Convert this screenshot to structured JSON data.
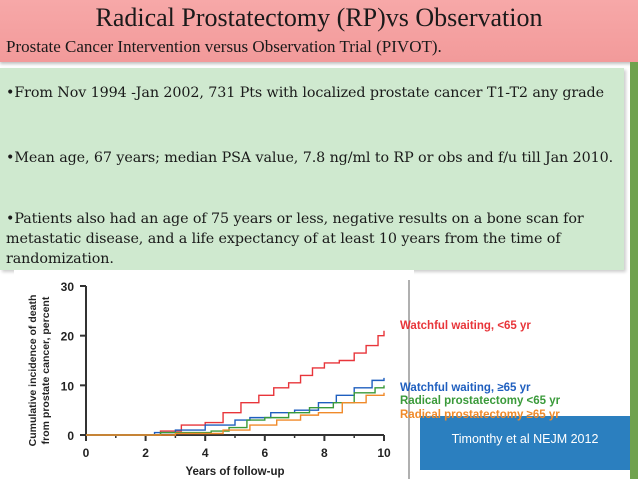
{
  "title": "Radical Prostatectomy (RP)vs Observation",
  "subtitle": "Prostate Cancer Intervention versus Observation Trial (PIVOT).",
  "bullets": [
    "•From Nov 1994 -Jan 2002,  731 Pts with localized prostate cancer T1-T2 any grade",
    "•Mean age, 67 years; median PSA value, 7.8 ng/ml to RP or obs and f/u till Jan 2010.",
    "•Patients also had an age of 75 years or less, negative results on a bone scan for metastatic disease, and a life expectancy of at least 10 years from the time of randomization."
  ],
  "citation": "Timonthy et al NEJM 2012",
  "colors": {
    "title_band": "#f29a9a",
    "text_box": "#cfe9cf",
    "accent_stripe": "#6fa24d",
    "citation_box": "#2b7fbf"
  },
  "chart_data": {
    "type": "line",
    "xlabel": "Years of follow-up",
    "ylabel": "Cumulative incidence of death from prostate cancer, percent",
    "xlim": [
      0,
      10
    ],
    "ylim": [
      0,
      30
    ],
    "xticks": [
      "0",
      "2",
      "4",
      "6",
      "8",
      "10"
    ],
    "yticks": [
      "0",
      "10",
      "20",
      "30"
    ],
    "series": [
      {
        "name": "Watchful waiting, <65 yr",
        "color": "#e8353a",
        "x": [
          0,
          2.5,
          3.2,
          4,
          4.6,
          5.2,
          5.8,
          6.3,
          6.8,
          7.2,
          7.6,
          8.0,
          8.5,
          9.0,
          9.4,
          9.8,
          10.2
        ],
        "y": [
          0,
          0.8,
          2.0,
          2.5,
          4.5,
          6.5,
          8.0,
          9.5,
          10.5,
          12.0,
          13.5,
          14.5,
          15.0,
          16.5,
          18.0,
          20.0,
          21.0
        ]
      },
      {
        "name": "Watchful waiting, ≥65 yr",
        "color": "#1f5fbf",
        "x": [
          0,
          2.3,
          3.0,
          4.0,
          5.0,
          5.5,
          6.2,
          7.0,
          7.8,
          8.4,
          9.0,
          9.6,
          10.2
        ],
        "y": [
          0,
          0.5,
          1.0,
          2.0,
          3.0,
          3.5,
          4.5,
          5.0,
          6.5,
          8.0,
          9.5,
          11.0,
          11.5
        ]
      },
      {
        "name": "Radical prostatectomy <65 yr",
        "color": "#3a9a3a",
        "x": [
          0,
          2.5,
          4.2,
          4.8,
          5.4,
          6.0,
          6.8,
          7.5,
          8.3,
          9.0,
          9.7,
          10.2
        ],
        "y": [
          0,
          0.5,
          0.8,
          1.5,
          3.0,
          3.5,
          4.5,
          5.5,
          6.5,
          8.5,
          9.5,
          10.0
        ]
      },
      {
        "name": "Radical prostatectomy ≥65 yr",
        "color": "#f08a2a",
        "x": [
          0,
          3.0,
          4.6,
          5.5,
          6.4,
          7.2,
          7.8,
          8.6,
          9.4,
          10.2
        ],
        "y": [
          0,
          0.3,
          1.0,
          2.0,
          3.0,
          4.0,
          4.5,
          6.5,
          8.0,
          8.5
        ]
      }
    ]
  }
}
